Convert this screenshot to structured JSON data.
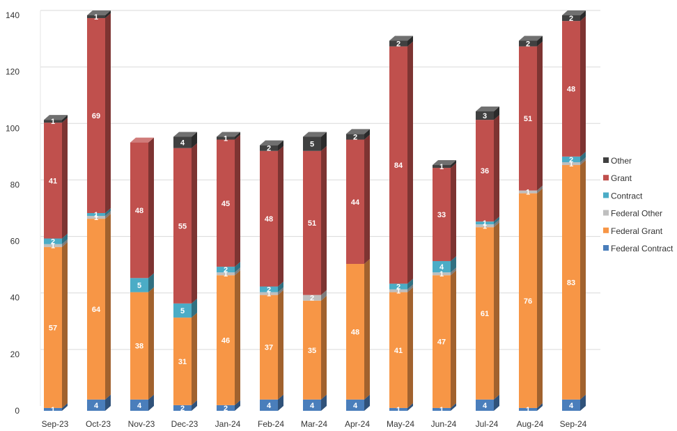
{
  "chart_data": {
    "type": "bar",
    "stacked": true,
    "three_d": true,
    "title": "",
    "xlabel": "",
    "ylabel": "",
    "ylim": [
      0,
      140
    ],
    "yticks": [
      0,
      20,
      40,
      60,
      80,
      100,
      120,
      140
    ],
    "grid": true,
    "legend_position": "right",
    "categories": [
      "Sep-23",
      "Oct-23",
      "Nov-23",
      "Dec-23",
      "Jan-24",
      "Feb-24",
      "Mar-24",
      "Apr-24",
      "May-24",
      "Jun-24",
      "Jul-24",
      "Aug-24",
      "Sep-24"
    ],
    "series": [
      {
        "name": "Federal Contract",
        "color": "#4a7ebb",
        "values": [
          1,
          4,
          4,
          2,
          2,
          4,
          4,
          4,
          1,
          1,
          4,
          1,
          4
        ]
      },
      {
        "name": "Federal Grant",
        "color": "#f79646",
        "values": [
          57,
          64,
          38,
          31,
          46,
          37,
          35,
          48,
          41,
          47,
          61,
          76,
          83
        ]
      },
      {
        "name": "Federal Other",
        "color": "#bfbfbf",
        "values": [
          1,
          1,
          0,
          0,
          1,
          1,
          2,
          0,
          1,
          1,
          1,
          1,
          1
        ]
      },
      {
        "name": "Contract",
        "color": "#4bacc6",
        "values": [
          2,
          1,
          5,
          5,
          2,
          2,
          0,
          0,
          2,
          4,
          1,
          0,
          2
        ]
      },
      {
        "name": "Grant",
        "color": "#c0504d",
        "values": [
          41,
          69,
          48,
          55,
          45,
          48,
          51,
          44,
          84,
          33,
          36,
          51,
          48
        ]
      },
      {
        "name": "Other",
        "color": "#404040",
        "values": [
          1,
          1,
          0,
          4,
          1,
          2,
          5,
          2,
          2,
          1,
          3,
          2,
          2
        ]
      }
    ]
  }
}
